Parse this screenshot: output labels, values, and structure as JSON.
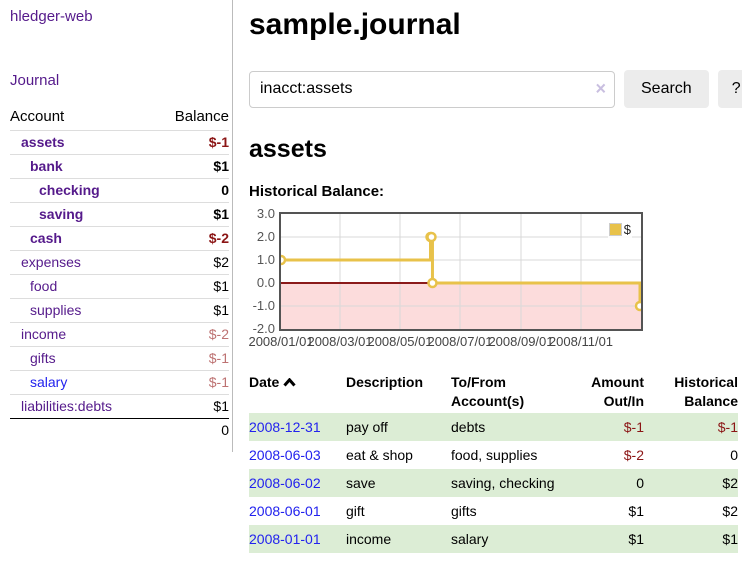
{
  "app": {
    "brand": "hledger-web"
  },
  "sidebar": {
    "journal_link": "Journal",
    "accounts": {
      "headers": {
        "account": "Account",
        "balance": "Balance"
      },
      "rows": [
        {
          "name": "assets",
          "balance": "$-1"
        },
        {
          "name": "bank",
          "balance": "$1"
        },
        {
          "name": "checking",
          "balance": "0"
        },
        {
          "name": "saving",
          "balance": "$1"
        },
        {
          "name": "cash",
          "balance": "$-2"
        },
        {
          "name": "expenses",
          "balance": "$2"
        },
        {
          "name": "food",
          "balance": "$1"
        },
        {
          "name": "supplies",
          "balance": "$1"
        },
        {
          "name": "income",
          "balance": "$-2"
        },
        {
          "name": "gifts",
          "balance": "$-1"
        },
        {
          "name": "salary",
          "balance": "$-1"
        },
        {
          "name": "liabilities:debts",
          "balance": "$1"
        }
      ],
      "total": "0"
    }
  },
  "main": {
    "title": "sample.journal",
    "search": {
      "value": "inacct:assets",
      "clear_icon": "×",
      "button_label": "Search",
      "help_label": "?"
    },
    "account_heading": "assets",
    "chart_label": "Historical Balance:"
  },
  "chart_data": {
    "type": "line",
    "title": "Historical Balance",
    "step": true,
    "series": [
      {
        "name": "$",
        "points": [
          {
            "date": "2008-01-01",
            "value": 1
          },
          {
            "date": "2008-06-01",
            "value": 2
          },
          {
            "date": "2008-06-02",
            "value": 2
          },
          {
            "date": "2008-06-03",
            "value": 0
          },
          {
            "date": "2008-12-31",
            "value": -1
          }
        ]
      }
    ],
    "x_range": [
      "2008-01-01",
      "2008-12-31"
    ],
    "ylim": [
      -2,
      3
    ],
    "y_ticks": [
      3,
      2,
      1,
      0,
      -1,
      -2
    ],
    "x_ticks": [
      {
        "label": "2008/01/01",
        "date": "2008-01-01"
      },
      {
        "label": "2008/03/01",
        "date": "2008-03-01"
      },
      {
        "label": "2008/05/01",
        "date": "2008-05-01"
      },
      {
        "label": "2008/07/01",
        "date": "2008-07-01"
      },
      {
        "label": "2008/09/01",
        "date": "2008-09-01"
      },
      {
        "label": "2008/11/01",
        "date": "2008-11-01"
      }
    ],
    "x_gridlines": [
      "2008-03-01",
      "2008-05-01",
      "2008-07-01",
      "2008-09-01",
      "2008-11-01"
    ],
    "legend": {
      "label": "$",
      "position": "top-right"
    },
    "colors": {
      "line": "#e8c24a",
      "marker_fill": "#ffffff",
      "negative_region": "#fcdcdc",
      "zero_line": "#8b1a1a",
      "grid": "#d9d9d9",
      "border": "#545454"
    }
  },
  "register": {
    "headers": {
      "date": "Date",
      "description": "Description",
      "accounts": "To/From Account(s)",
      "amount": "Amount Out/In",
      "balance": "Historical Balance"
    },
    "rows": [
      {
        "date": "2008-12-31",
        "description": "pay off",
        "accounts": "debts",
        "amount": "$-1",
        "balance": "$-1"
      },
      {
        "date": "2008-06-03",
        "description": "eat & shop",
        "accounts": "food, supplies",
        "amount": "$-2",
        "balance": "0"
      },
      {
        "date": "2008-06-02",
        "description": "save",
        "accounts": "saving, checking",
        "amount": "0",
        "balance": "$2"
      },
      {
        "date": "2008-06-01",
        "description": "gift",
        "accounts": "gifts",
        "amount": "$1",
        "balance": "$2"
      },
      {
        "date": "2008-01-01",
        "description": "income",
        "accounts": "salary",
        "amount": "$1",
        "balance": "$1"
      }
    ]
  }
}
